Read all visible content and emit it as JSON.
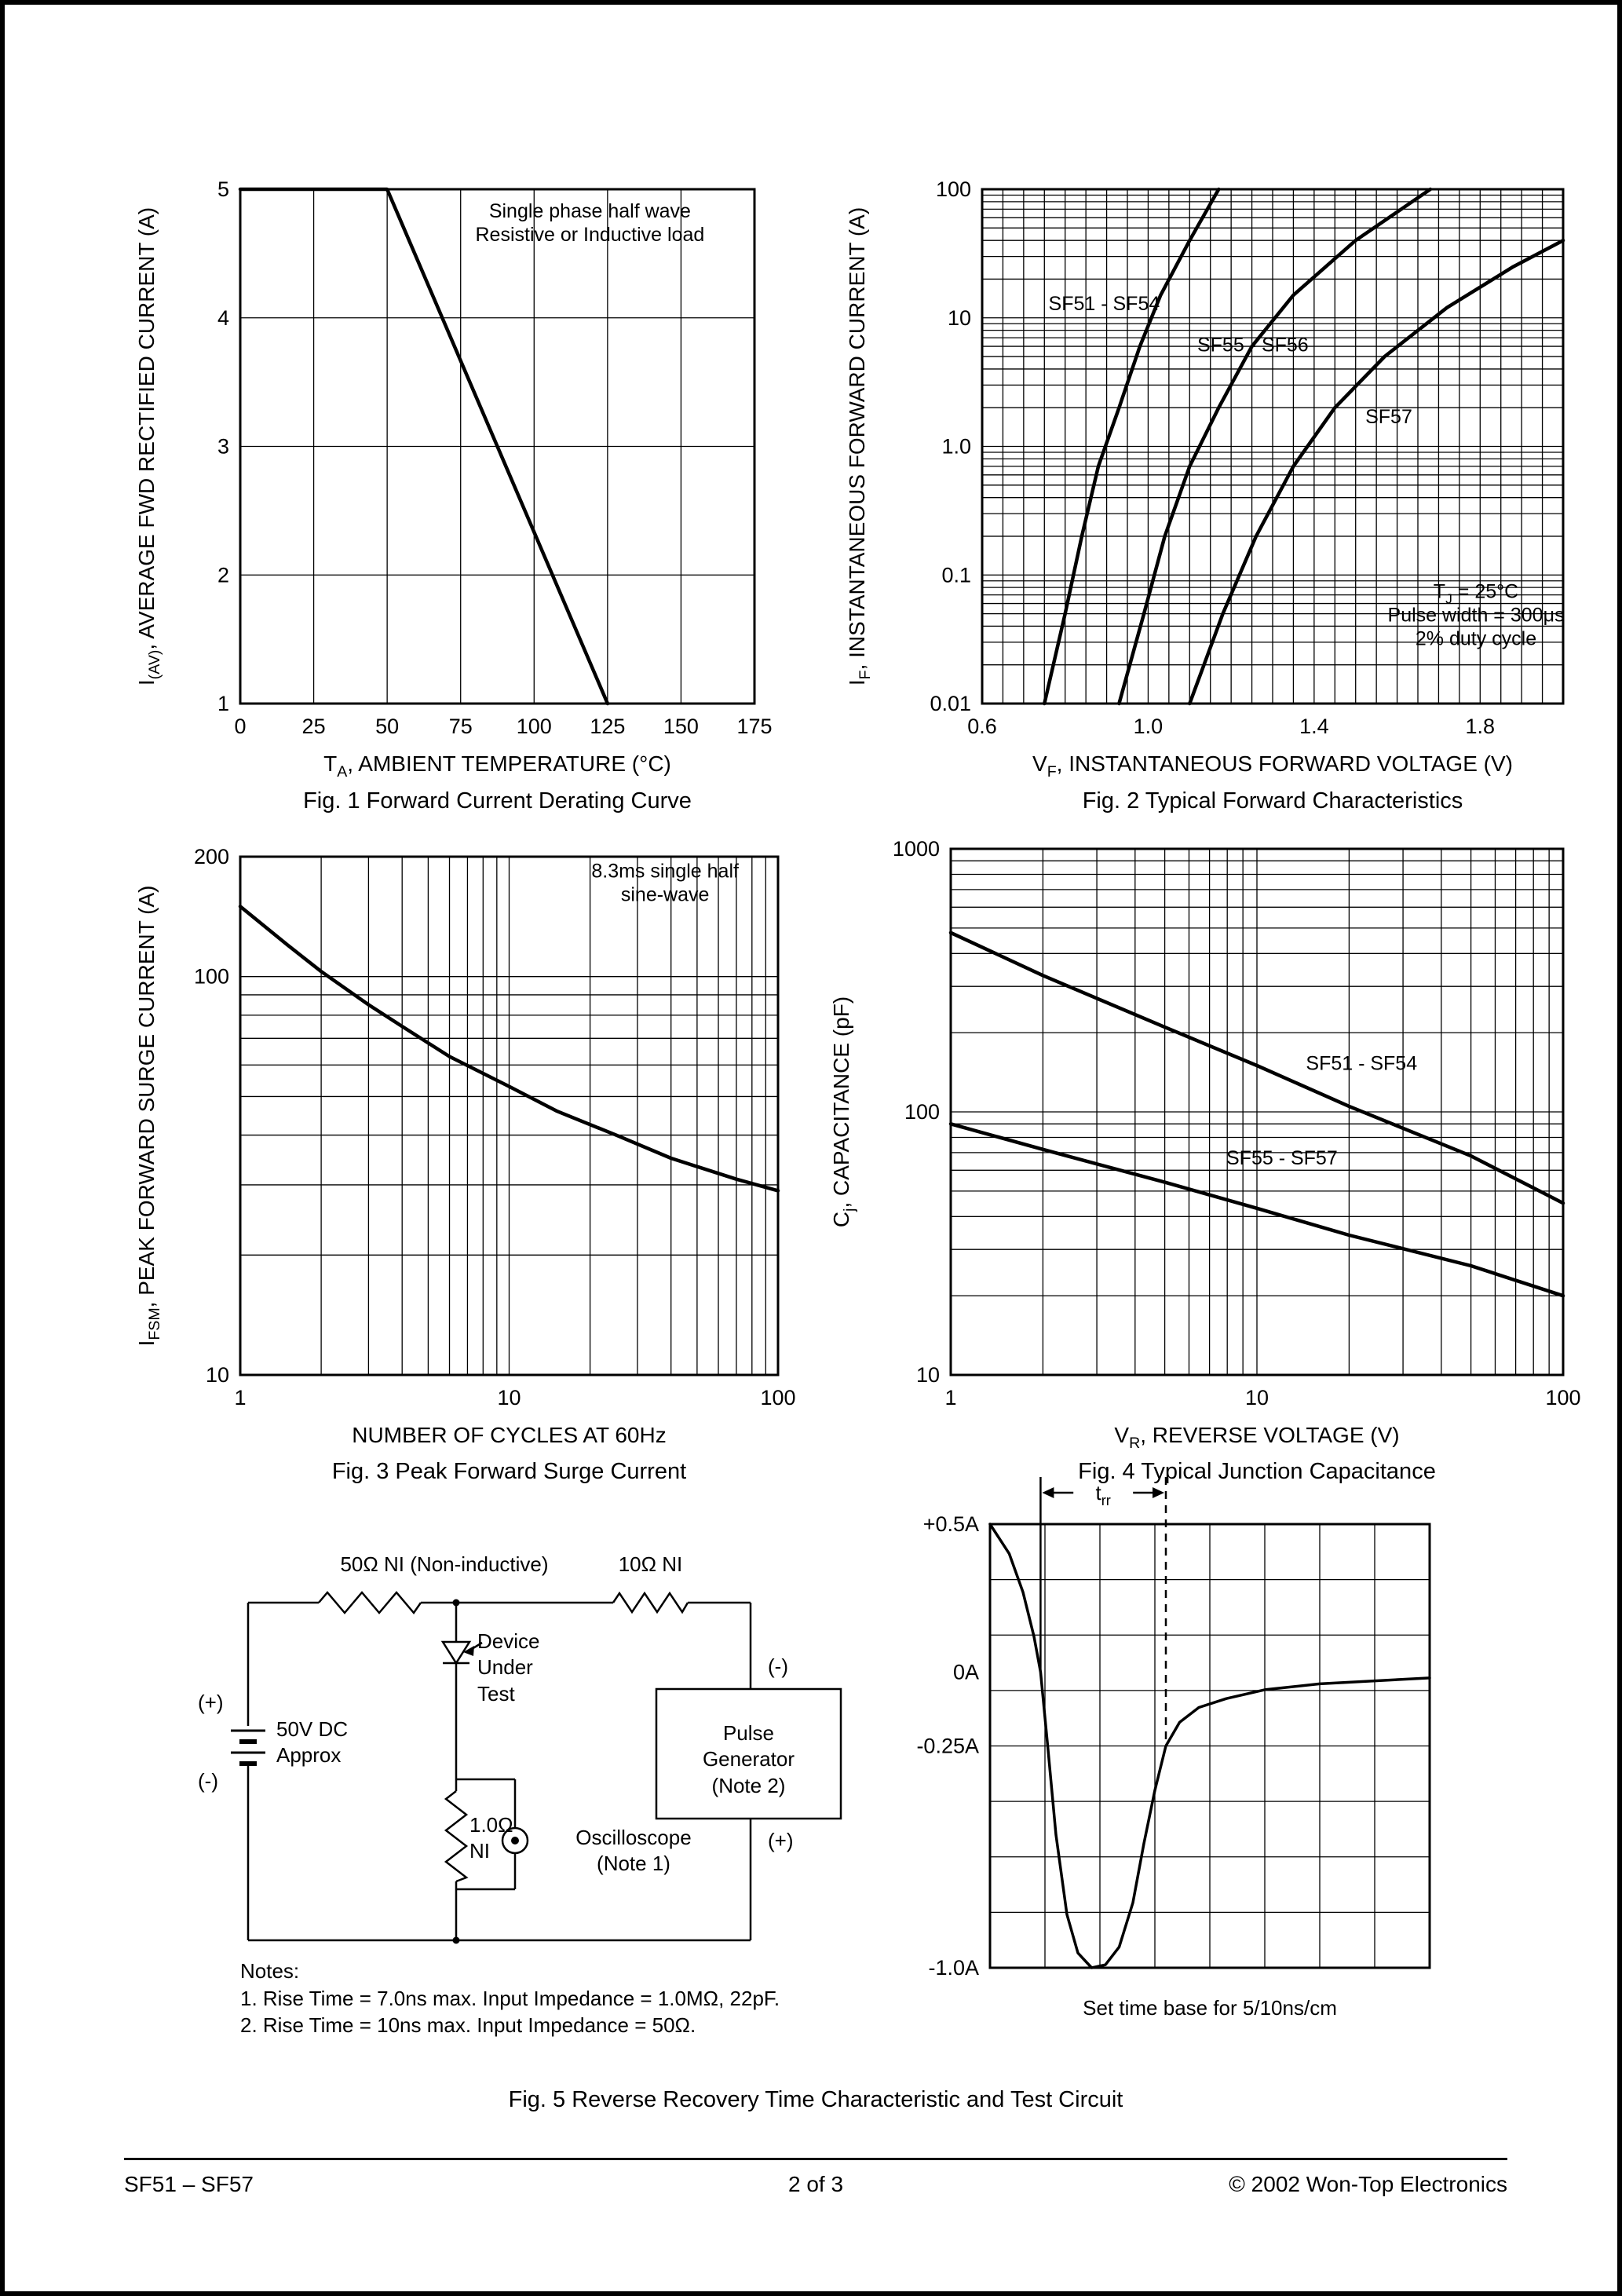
{
  "document": {
    "fig5_caption": "Fig. 5  Reverse Recovery Time Characteristic and Test Circuit",
    "footer_left": "SF51 – SF57",
    "footer_center": "2  of  3",
    "footer_right": "© 2002 Won-Top Electronics"
  },
  "circuit": {
    "r_top_left": "50Ω NI (Non-inductive)",
    "r_top_right": "10Ω NI",
    "dut": "Device\nUnder\nTest",
    "plus_left": "(+)",
    "minus_left": "(-)",
    "battery": "50V DC\nApprox",
    "shunt": "1.0Ω\nNI",
    "oscilloscope": "Oscilloscope\n(Note 1)",
    "pulse_generator": "Pulse\nGenerator\n(Note 2)",
    "minus_right": "(-)",
    "plus_right": "(+)",
    "notes_title": "Notes:",
    "note1": "1. Rise Time = 7.0ns max. Input Impedance = 1.0MΩ, 22pF.",
    "note2": "2. Rise Time = 10ns max. Input Impedance = 50Ω.",
    "timebase": "Set time base for 5/10ns/cm"
  },
  "chart_data": [
    {
      "id": "fig1",
      "type": "line",
      "caption": "Fig. 1  Forward Current Derating Curve",
      "x": {
        "scale": "linear",
        "min": 0,
        "max": 175,
        "gstep": 25,
        "ticks": [
          {
            "v": 0,
            "label": "0"
          },
          {
            "v": 25,
            "label": "25"
          },
          {
            "v": 50,
            "label": "50"
          },
          {
            "v": 75,
            "label": "75"
          },
          {
            "v": 100,
            "label": "100"
          },
          {
            "v": 125,
            "label": "125"
          },
          {
            "v": 150,
            "label": "150"
          },
          {
            "v": 175,
            "label": "175"
          }
        ],
        "title": [
          {
            "t": "T"
          },
          {
            "t": "A",
            "sub": true
          },
          {
            "t": ", AMBIENT TEMPERATURE (°C)"
          }
        ]
      },
      "y": {
        "scale": "linear",
        "min": 1,
        "max": 5,
        "gstep": 1,
        "ticks": [
          {
            "v": 5,
            "label": "5"
          },
          {
            "v": 4,
            "label": "4"
          },
          {
            "v": 3,
            "label": "3"
          },
          {
            "v": 2,
            "label": "2"
          },
          {
            "v": 1,
            "label": "1"
          }
        ],
        "title": [
          {
            "t": "I"
          },
          {
            "t": "(AV)",
            "sub": true
          },
          {
            "t": ", AVERAGE FWD RECTIFIED CURRENT (A)"
          }
        ]
      },
      "series": [
        {
          "name": "derating-curve",
          "points": [
            [
              0,
              5
            ],
            [
              50,
              5
            ],
            [
              125,
              1
            ]
          ]
        }
      ],
      "labels": [
        {
          "fx": 0.68,
          "fy": 0.055,
          "anchor": "middle",
          "lines": [
            "Single phase half wave",
            "Resistive or Inductive load"
          ]
        }
      ]
    },
    {
      "id": "fig2",
      "type": "line",
      "caption": "Fig. 2  Typical Forward Characteristics",
      "x": {
        "scale": "linear",
        "min": 0.6,
        "max": 2.0,
        "gstep": 0.05,
        "ticks": [
          {
            "v": 0.6,
            "label": "0.6"
          },
          {
            "v": 1.0,
            "label": "1.0"
          },
          {
            "v": 1.4,
            "label": "1.4"
          },
          {
            "v": 1.8,
            "label": "1.8"
          }
        ],
        "title": [
          {
            "t": "V"
          },
          {
            "t": "F",
            "sub": true
          },
          {
            "t": ", INSTANTANEOUS FORWARD VOLTAGE (V)"
          }
        ]
      },
      "y": {
        "scale": "log",
        "min": 0.01,
        "max": 100,
        "ticks": [
          {
            "v": 100,
            "label": "100"
          },
          {
            "v": 10,
            "label": "10"
          },
          {
            "v": 1,
            "label": "1.0"
          },
          {
            "v": 0.1,
            "label": "0.1"
          },
          {
            "v": 0.01,
            "label": "0.01"
          }
        ],
        "title": [
          {
            "t": "I"
          },
          {
            "t": "F",
            "sub": true
          },
          {
            "t": ", INSTANTANEOUS FORWARD CURRENT (A)"
          }
        ]
      },
      "series": [
        {
          "name": "SF51 - SF54",
          "points": [
            [
              0.75,
              0.01
            ],
            [
              0.8,
              0.05
            ],
            [
              0.84,
              0.2
            ],
            [
              0.88,
              0.7
            ],
            [
              0.93,
              2
            ],
            [
              0.98,
              6
            ],
            [
              1.03,
              15
            ],
            [
              1.1,
              40
            ],
            [
              1.17,
              100
            ]
          ]
        },
        {
          "name": "SF55 - SF56",
          "points": [
            [
              0.93,
              0.01
            ],
            [
              0.99,
              0.05
            ],
            [
              1.04,
              0.2
            ],
            [
              1.1,
              0.7
            ],
            [
              1.17,
              2
            ],
            [
              1.25,
              6
            ],
            [
              1.35,
              15
            ],
            [
              1.5,
              40
            ],
            [
              1.68,
              100
            ]
          ]
        },
        {
          "name": "SF57",
          "points": [
            [
              1.1,
              0.01
            ],
            [
              1.18,
              0.05
            ],
            [
              1.26,
              0.2
            ],
            [
              1.35,
              0.7
            ],
            [
              1.45,
              2
            ],
            [
              1.57,
              5
            ],
            [
              1.72,
              12
            ],
            [
              1.88,
              25
            ],
            [
              2.0,
              40
            ]
          ]
        }
      ],
      "labels": [
        {
          "fx": 0.21,
          "fy": 0.235,
          "anchor": "middle",
          "lines": [
            "SF51 - SF54"
          ]
        },
        {
          "fx": 0.466,
          "fy": 0.315,
          "anchor": "middle",
          "lines": [
            "SF55 - SF56"
          ]
        },
        {
          "fx": 0.7,
          "fy": 0.455,
          "anchor": "middle",
          "lines": [
            "SF57"
          ]
        },
        {
          "fx": 0.85,
          "fy": 0.795,
          "anchor": "middle",
          "lines": [
            [
              {
                "t": "T"
              },
              {
                "t": "J",
                "sub": true
              },
              {
                "t": " = 25°C"
              }
            ],
            "Pulse width = 300μs",
            "2% duty cycle"
          ]
        }
      ]
    },
    {
      "id": "fig3",
      "type": "line",
      "caption": "Fig. 3  Peak Forward Surge Current",
      "x": {
        "scale": "log",
        "min": 1,
        "max": 100,
        "ticks": [
          {
            "v": 1,
            "label": "1"
          },
          {
            "v": 10,
            "label": "10"
          },
          {
            "v": 100,
            "label": "100"
          }
        ],
        "title": [
          {
            "t": "NUMBER OF CYCLES AT 60Hz"
          }
        ]
      },
      "y": {
        "scale": "log",
        "min": 10,
        "max": 200,
        "ticks": [
          {
            "v": 200,
            "label": "200"
          },
          {
            "v": 100,
            "label": "100"
          },
          {
            "v": 10,
            "label": "10"
          }
        ],
        "title": [
          {
            "t": "I"
          },
          {
            "t": "FSM",
            "sub": true
          },
          {
            "t": ", PEAK FORWARD SURGE CURRENT (A)"
          }
        ]
      },
      "series": [
        {
          "name": "surge-current",
          "points": [
            [
              1,
              150
            ],
            [
              1.5,
              120
            ],
            [
              2,
              103
            ],
            [
              3,
              85
            ],
            [
              4,
              75
            ],
            [
              6,
              63
            ],
            [
              10,
              53
            ],
            [
              15,
              46
            ],
            [
              25,
              40
            ],
            [
              40,
              35
            ],
            [
              70,
              31
            ],
            [
              100,
              29
            ]
          ]
        }
      ],
      "labels": [
        {
          "fx": 0.79,
          "fy": 0.04,
          "anchor": "middle",
          "lines": [
            "8.3ms single half",
            "sine-wave"
          ]
        }
      ]
    },
    {
      "id": "fig4",
      "type": "line",
      "caption": "Fig. 4  Typical Junction Capacitance",
      "x": {
        "scale": "log",
        "min": 1,
        "max": 100,
        "ticks": [
          {
            "v": 1,
            "label": "1"
          },
          {
            "v": 10,
            "label": "10"
          },
          {
            "v": 100,
            "label": "100"
          }
        ],
        "title": [
          {
            "t": "V"
          },
          {
            "t": "R",
            "sub": true
          },
          {
            "t": ", REVERSE VOLTAGE (V)"
          }
        ]
      },
      "y": {
        "scale": "log",
        "min": 10,
        "max": 1000,
        "ticks": [
          {
            "v": 1000,
            "label": "1000"
          },
          {
            "v": 100,
            "label": "100"
          },
          {
            "v": 10,
            "label": "10"
          }
        ],
        "title": [
          {
            "t": "C"
          },
          {
            "t": "j",
            "sub": true
          },
          {
            "t": ", CAPACITANCE (pF)"
          }
        ]
      },
      "series": [
        {
          "name": "SF51 - SF54",
          "points": [
            [
              1,
              480
            ],
            [
              2,
              330
            ],
            [
              5,
              210
            ],
            [
              10,
              150
            ],
            [
              20,
              105
            ],
            [
              50,
              68
            ],
            [
              100,
              45
            ]
          ]
        },
        {
          "name": "SF55 - SF57",
          "points": [
            [
              1,
              90
            ],
            [
              2,
              72
            ],
            [
              5,
              54
            ],
            [
              10,
              43
            ],
            [
              20,
              34
            ],
            [
              50,
              26
            ],
            [
              100,
              20
            ]
          ]
        }
      ],
      "labels": [
        {
          "fx": 0.58,
          "fy": 0.42,
          "anchor": "start",
          "lines": [
            "SF51 - SF54"
          ]
        },
        {
          "fx": 0.45,
          "fy": 0.6,
          "anchor": "start",
          "lines": [
            "SF55 - SF57"
          ]
        }
      ]
    },
    {
      "id": "fig5-wave",
      "type": "line",
      "x": {
        "scale": "linear",
        "min": 0,
        "max": 8,
        "gstep": 1
      },
      "y": {
        "scale": "linear",
        "min": -1.0,
        "max": 0.5,
        "gstep": 0.1875,
        "ticks": [
          {
            "v": 0.5,
            "label": "+0.5A"
          },
          {
            "v": 0,
            "label": "0A"
          },
          {
            "v": -0.25,
            "label": "-0.25A"
          },
          {
            "v": -1.0,
            "label": "-1.0A"
          }
        ]
      },
      "series": [
        {
          "name": "reverse-recovery",
          "points": [
            [
              0,
              0.5
            ],
            [
              0.35,
              0.4
            ],
            [
              0.6,
              0.27
            ],
            [
              0.8,
              0.12
            ],
            [
              0.92,
              0
            ],
            [
              1.05,
              -0.25
            ],
            [
              1.2,
              -0.55
            ],
            [
              1.4,
              -0.82
            ],
            [
              1.6,
              -0.95
            ],
            [
              1.85,
              -1.0
            ],
            [
              2.1,
              -0.99
            ],
            [
              2.35,
              -0.93
            ],
            [
              2.6,
              -0.78
            ],
            [
              2.8,
              -0.58
            ],
            [
              3.0,
              -0.4
            ],
            [
              3.2,
              -0.25
            ],
            [
              3.45,
              -0.17
            ],
            [
              3.8,
              -0.12
            ],
            [
              4.3,
              -0.09
            ],
            [
              5,
              -0.06
            ],
            [
              6,
              -0.04
            ],
            [
              7,
              -0.03
            ],
            [
              8,
              -0.02
            ]
          ]
        }
      ],
      "trr": {
        "x_start": 0.92,
        "x_end": 3.2,
        "label": [
          {
            "t": "t"
          },
          {
            "t": "rr",
            "sub": true
          }
        ]
      }
    }
  ]
}
